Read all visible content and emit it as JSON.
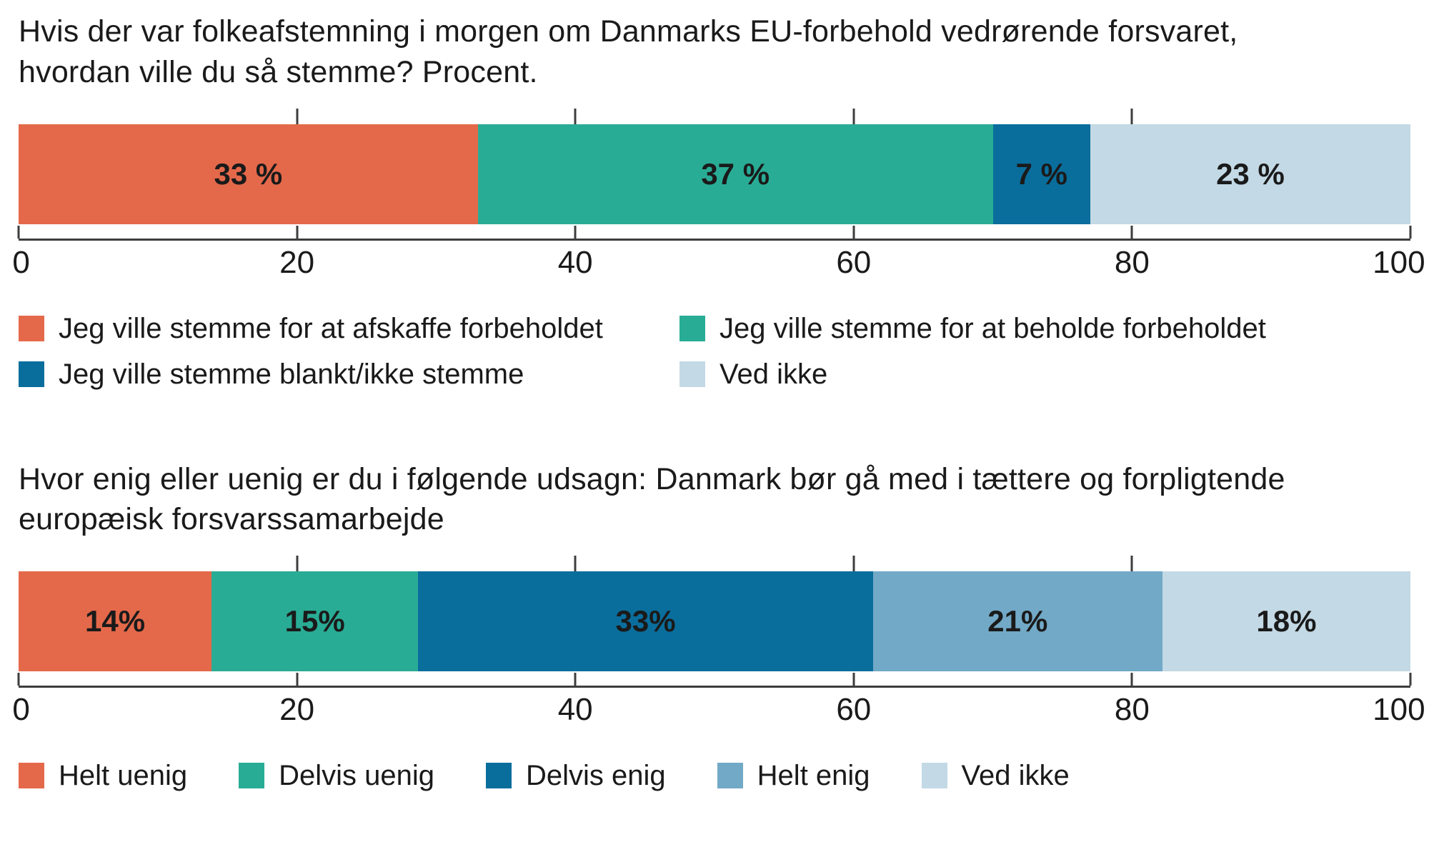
{
  "page": {
    "background": "#ffffff",
    "text_color": "#1a1a1a",
    "axis_color": "#3d3d3d"
  },
  "chart_data": [
    {
      "type": "bar",
      "stacked": true,
      "orientation": "horizontal",
      "title": "Hvis der var folkeafstemning i morgen om Danmarks EU-forbehold vedrørende forsvaret, hvordan ville du så stemme? Procent.",
      "xlim": [
        0,
        100
      ],
      "ticks": [
        0,
        20,
        40,
        60,
        80,
        100
      ],
      "unit": "%",
      "grid": false,
      "legend_layout": "two-column",
      "legend_position": "bottom",
      "segments": [
        {
          "name": "Jeg ville stemme for at afskaffe forbeholdet",
          "value": 33,
          "display": "33 %",
          "color": "#e4694a"
        },
        {
          "name": "Jeg ville stemme for at beholde forbeholdet",
          "value": 37,
          "display": "37 %",
          "color": "#29ac95"
        },
        {
          "name": "Jeg ville stemme blankt/ikke stemme",
          "value": 7,
          "display": "7 %",
          "color": "#0a6e9d"
        },
        {
          "name": "Ved ikke",
          "value": 23,
          "display": "23 %",
          "color": "#c3d9e5"
        }
      ]
    },
    {
      "type": "bar",
      "stacked": true,
      "orientation": "horizontal",
      "title": "Hvor enig eller uenig er du i følgende udsagn: Danmark bør gå med i tættere og forpligtende europæisk forsvarssamarbejde",
      "xlim": [
        0,
        100
      ],
      "ticks": [
        0,
        20,
        40,
        60,
        80,
        100
      ],
      "unit": "%",
      "grid": false,
      "legend_layout": "single-row",
      "legend_position": "bottom",
      "segments": [
        {
          "name": "Helt uenig",
          "value": 14,
          "display": "14%",
          "color": "#e4694a"
        },
        {
          "name": "Delvis uenig",
          "value": 15,
          "display": "15%",
          "color": "#29ac95"
        },
        {
          "name": "Delvis enig",
          "value": 33,
          "display": "33%",
          "color": "#0a6e9d"
        },
        {
          "name": "Helt enig",
          "value": 21,
          "display": "21%",
          "color": "#72a9c7"
        },
        {
          "name": "Ved ikke",
          "value": 18,
          "display": "18%",
          "color": "#c3d9e5"
        }
      ]
    }
  ]
}
